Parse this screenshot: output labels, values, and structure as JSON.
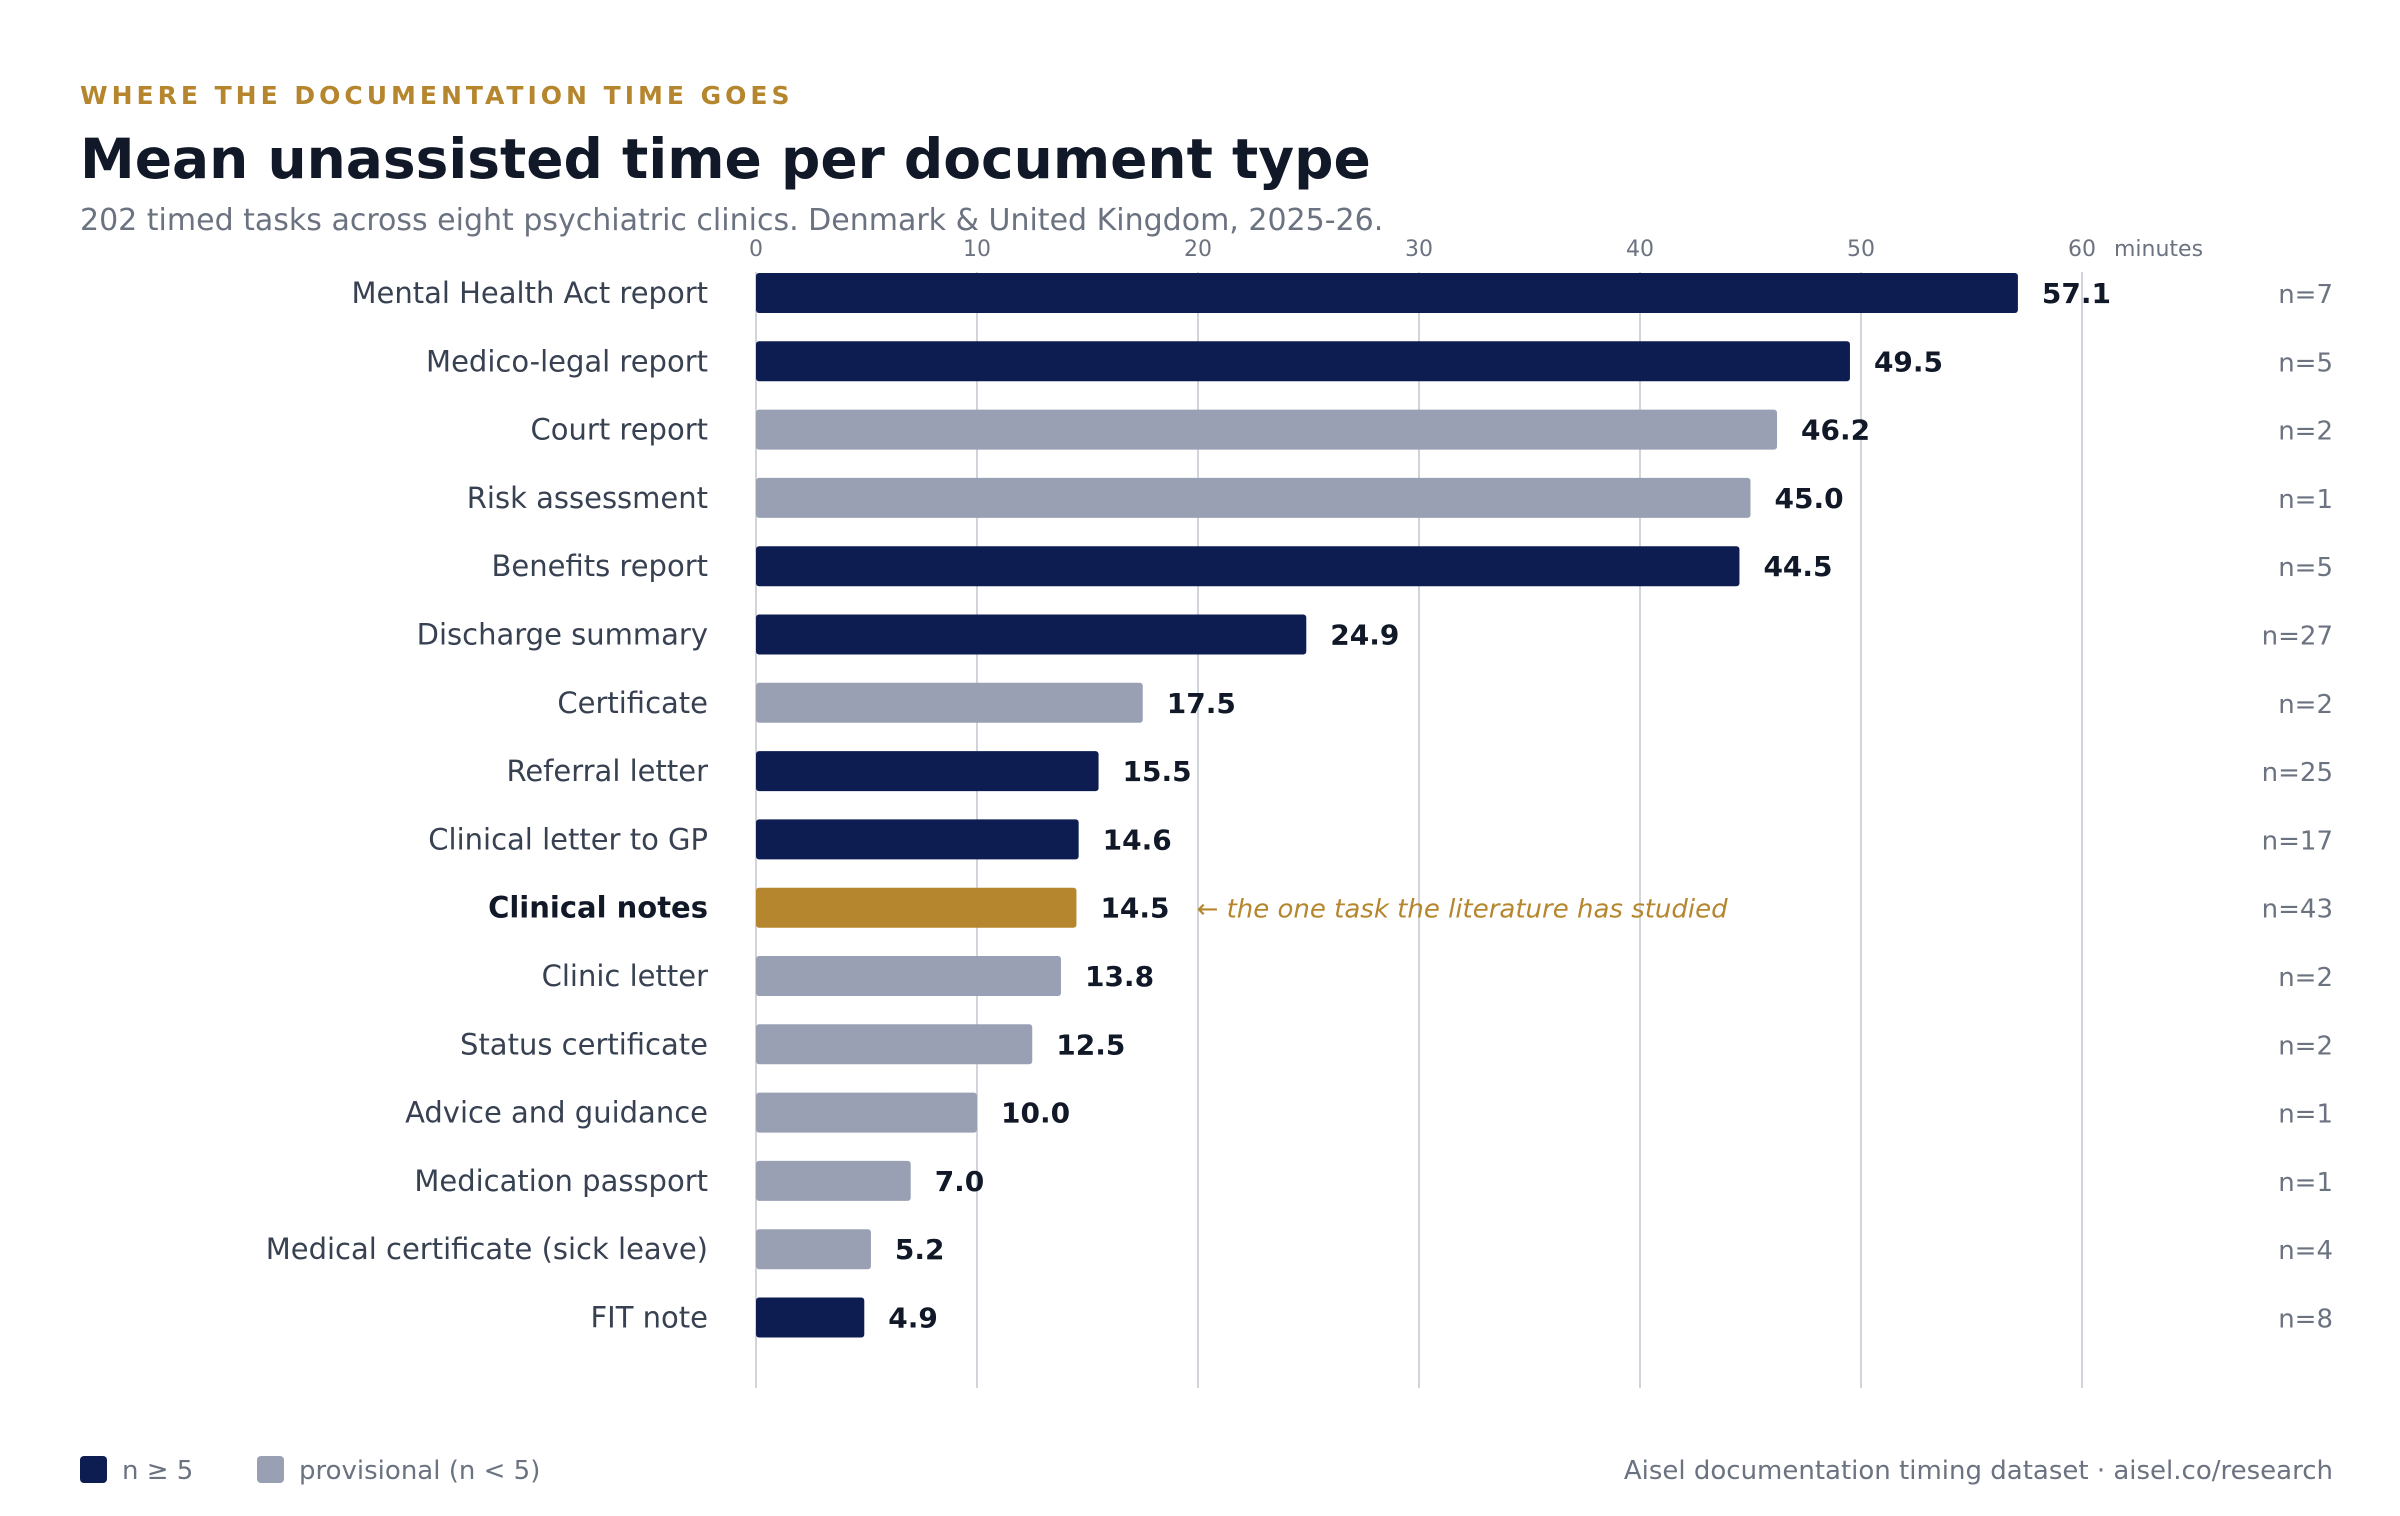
{
  "kicker": "WHERE THE DOCUMENTATION TIME GOES",
  "title": "Mean unassisted time per document type",
  "subtitle": "202 timed tasks across eight psychiatric clinics. Denmark & United Kingdom, 2025-26.",
  "source": "Aisel documentation timing dataset · aisel.co/research",
  "legend": [
    {
      "label": "n ≥ 5",
      "color": "#0d1d52"
    },
    {
      "label": "provisional (n < 5)",
      "color": "#9aa0b4"
    }
  ],
  "colors": {
    "main": "#0d1d52",
    "provisional": "#9aa0b4",
    "highlight": "#b5862d"
  },
  "chart_data": {
    "type": "bar",
    "orientation": "horizontal",
    "xlabel": "minutes",
    "xlim": [
      0,
      60
    ],
    "xticks": [
      0,
      10,
      20,
      30,
      40,
      50,
      60
    ],
    "grid": true,
    "legend_position": "bottom-left",
    "categories": [
      "Mental Health Act report",
      "Medico-legal report",
      "Court report",
      "Risk assessment",
      "Benefits report",
      "Discharge summary",
      "Certificate",
      "Referral letter",
      "Clinical letter to GP",
      "Clinical notes",
      "Clinic letter",
      "Status certificate",
      "Advice and guidance",
      "Medication passport",
      "Medical certificate (sick leave)",
      "FIT note"
    ],
    "values": [
      57.1,
      49.5,
      46.2,
      45.0,
      44.5,
      24.9,
      17.5,
      15.5,
      14.6,
      14.5,
      13.8,
      12.5,
      10.0,
      7.0,
      5.2,
      4.9
    ],
    "value_labels": [
      "57.1",
      "49.5",
      "46.2",
      "45.0",
      "44.5",
      "24.9",
      "17.5",
      "15.5",
      "14.6",
      "14.5",
      "13.8",
      "12.5",
      "10.0",
      "7.0",
      "5.2",
      "4.9"
    ],
    "n": [
      7,
      5,
      2,
      1,
      5,
      27,
      2,
      25,
      17,
      43,
      2,
      2,
      1,
      1,
      4,
      8
    ],
    "n_labels": [
      "n=7",
      "n=5",
      "n=2",
      "n=1",
      "n=5",
      "n=27",
      "n=2",
      "n=25",
      "n=17",
      "n=43",
      "n=2",
      "n=2",
      "n=1",
      "n=1",
      "n=4",
      "n=8"
    ],
    "status": [
      "main",
      "main",
      "provisional",
      "provisional",
      "main",
      "main",
      "provisional",
      "main",
      "main",
      "highlight",
      "provisional",
      "provisional",
      "provisional",
      "provisional",
      "provisional",
      "main"
    ],
    "highlight_category": "Clinical notes",
    "annotation": {
      "category": "Clinical notes",
      "text": "← the one task the literature has studied"
    }
  }
}
